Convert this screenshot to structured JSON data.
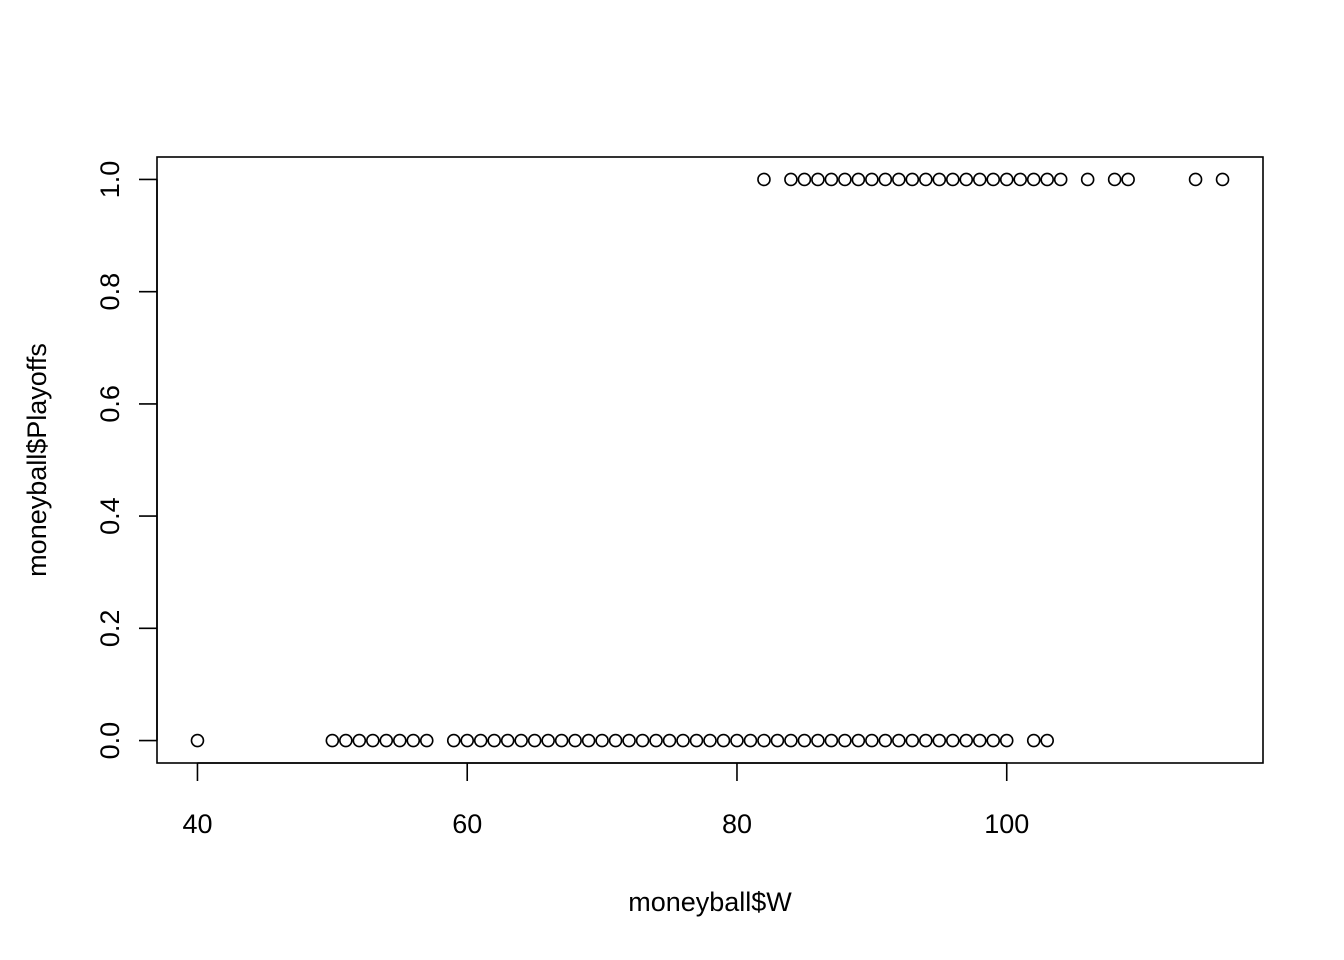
{
  "chart_data": {
    "type": "scatter",
    "title": "",
    "xlabel": "moneyball$W",
    "ylabel": "moneyball$Playoffs",
    "xlim": [
      37,
      119
    ],
    "ylim": [
      -0.04,
      1.04
    ],
    "x_ticks": [
      40,
      60,
      80,
      100
    ],
    "x_tick_labels": [
      "40",
      "60",
      "80",
      "100"
    ],
    "y_ticks": [
      0,
      0.2,
      0.4,
      0.6,
      0.8,
      1
    ],
    "y_tick_labels": [
      "0.0",
      "0.2",
      "0.4",
      "0.6",
      "0.8",
      "1.0"
    ],
    "grid": false,
    "marker": "open-circle",
    "color": "#000000",
    "series": [
      {
        "x": [
          40,
          50,
          51,
          52,
          53,
          54,
          55,
          56,
          57,
          59,
          60,
          61,
          62,
          63,
          64,
          65,
          66,
          67,
          68,
          69,
          70,
          71,
          72,
          73,
          74,
          75,
          76,
          77,
          78,
          79,
          80,
          81,
          82,
          83,
          84,
          85,
          86,
          87,
          88,
          89,
          90,
          91,
          92,
          93,
          94,
          95,
          96,
          97,
          98,
          99,
          100,
          102,
          103
        ],
        "y": [
          0,
          0,
          0,
          0,
          0,
          0,
          0,
          0,
          0,
          0,
          0,
          0,
          0,
          0,
          0,
          0,
          0,
          0,
          0,
          0,
          0,
          0,
          0,
          0,
          0,
          0,
          0,
          0,
          0,
          0,
          0,
          0,
          0,
          0,
          0,
          0,
          0,
          0,
          0,
          0,
          0,
          0,
          0,
          0,
          0,
          0,
          0,
          0,
          0,
          0,
          0,
          0,
          0
        ]
      },
      {
        "x": [
          82,
          84,
          85,
          86,
          87,
          88,
          89,
          90,
          91,
          92,
          93,
          94,
          95,
          96,
          97,
          98,
          99,
          100,
          101,
          102,
          103,
          104,
          106,
          108,
          109,
          114,
          116
        ],
        "y": [
          1,
          1,
          1,
          1,
          1,
          1,
          1,
          1,
          1,
          1,
          1,
          1,
          1,
          1,
          1,
          1,
          1,
          1,
          1,
          1,
          1,
          1,
          1,
          1,
          1,
          1,
          1
        ]
      }
    ]
  }
}
